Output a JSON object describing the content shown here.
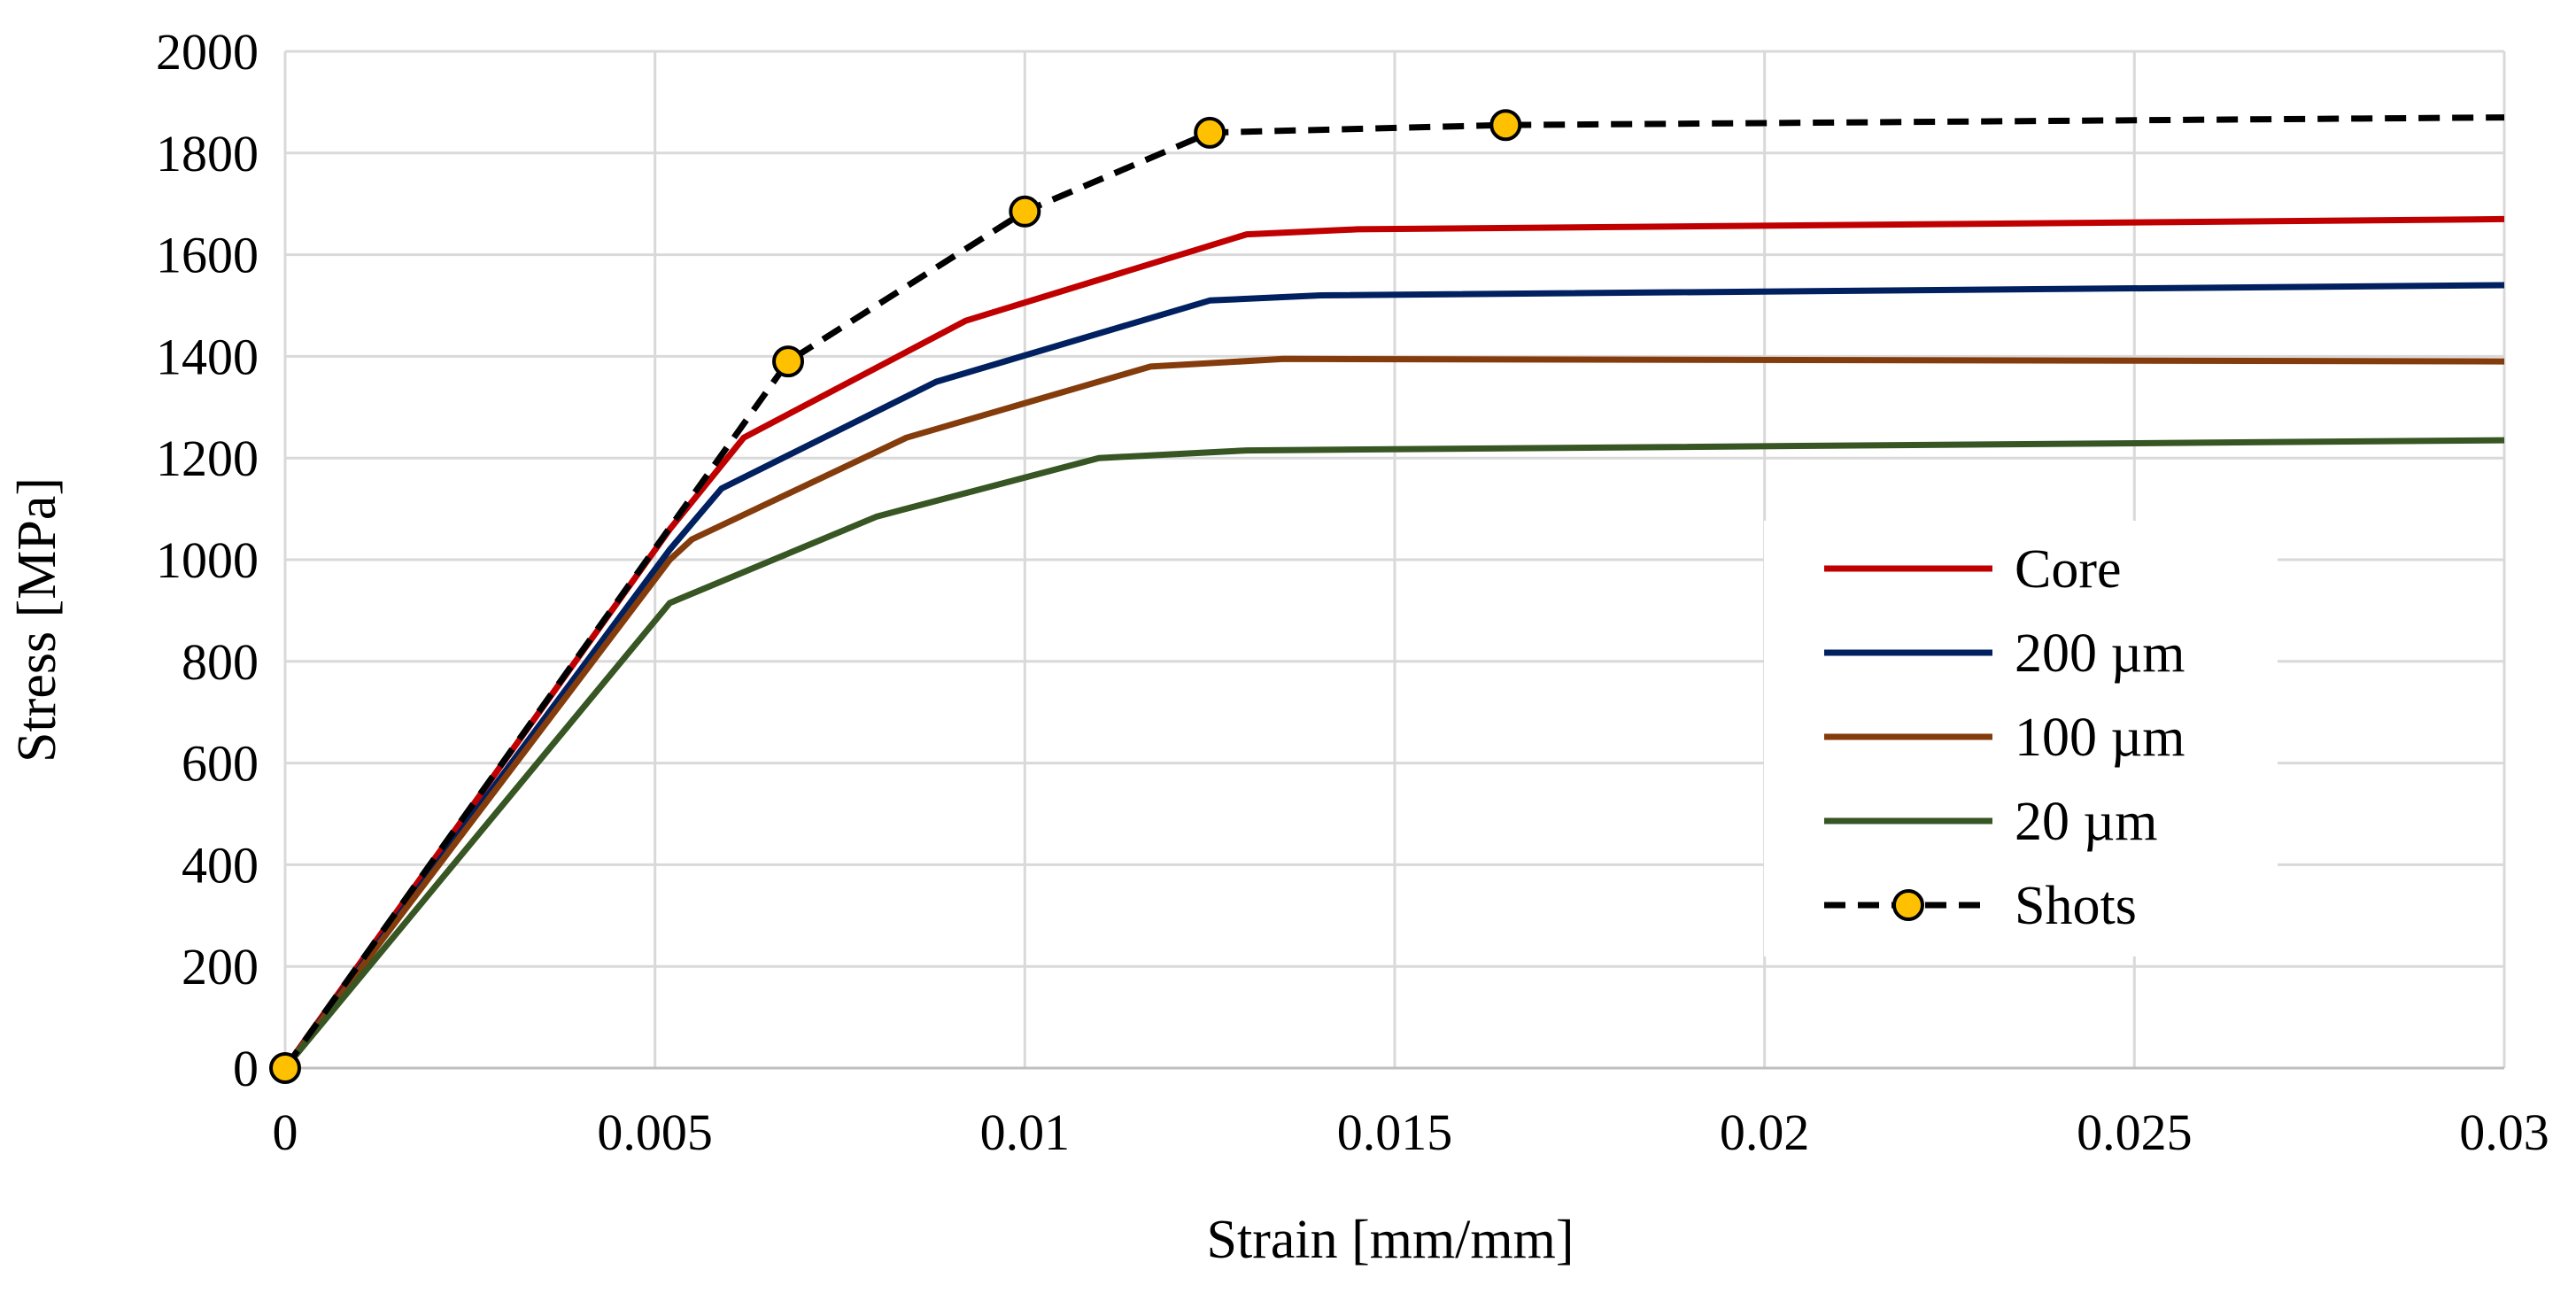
{
  "chart_data": {
    "type": "line",
    "title": "",
    "xlabel": "Strain [mm/mm]",
    "ylabel": "Stress [MPa]",
    "xlim": [
      0,
      0.03
    ],
    "ylim": [
      0,
      2000
    ],
    "xticks": [
      0,
      0.005,
      0.01,
      0.015,
      0.02,
      0.025,
      0.03
    ],
    "xtick_labels": [
      "0",
      "0.005",
      "0.01",
      "0.015",
      "0.02",
      "0.025",
      "0.03"
    ],
    "yticks": [
      0,
      200,
      400,
      600,
      800,
      1000,
      1200,
      1400,
      1600,
      1800,
      2000
    ],
    "ytick_labels": [
      "0",
      "200",
      "400",
      "600",
      "800",
      "1000",
      "1200",
      "1400",
      "1600",
      "1800",
      "2000"
    ],
    "grid": true,
    "legend_position": "right-center",
    "series": [
      {
        "name": "Core",
        "color": "#c00000",
        "style": "solid",
        "markers": false,
        "x": [
          0,
          0.0052,
          0.0062,
          0.0092,
          0.013,
          0.0145,
          0.03
        ],
        "y": [
          0,
          1060,
          1240,
          1470,
          1640,
          1650,
          1670
        ]
      },
      {
        "name": "200 µm",
        "color": "#002060",
        "style": "solid",
        "markers": false,
        "x": [
          0,
          0.0052,
          0.0059,
          0.0088,
          0.0125,
          0.014,
          0.03
        ],
        "y": [
          0,
          1020,
          1140,
          1350,
          1510,
          1520,
          1540
        ]
      },
      {
        "name": "100 µm",
        "color": "#843c0c",
        "style": "solid",
        "markers": false,
        "x": [
          0,
          0.0052,
          0.0055,
          0.0084,
          0.0117,
          0.0135,
          0.03
        ],
        "y": [
          0,
          1000,
          1040,
          1240,
          1380,
          1395,
          1390
        ]
      },
      {
        "name": "20 µm",
        "color": "#375623",
        "style": "solid",
        "markers": false,
        "x": [
          0,
          0.0052,
          0.008,
          0.011,
          0.013,
          0.03
        ],
        "y": [
          0,
          915,
          1085,
          1200,
          1215,
          1235
        ]
      },
      {
        "name": "Shots",
        "color": "#000000",
        "style": "dashed",
        "markers": true,
        "marker_color": "#ffc000",
        "x": [
          0,
          0.0068,
          0.01,
          0.0125,
          0.0165,
          0.03
        ],
        "y": [
          0,
          1390,
          1685,
          1840,
          1855,
          1870
        ],
        "marker_x": [
          0,
          0.0068,
          0.01,
          0.0125,
          0.0165
        ],
        "marker_y": [
          0,
          1390,
          1685,
          1840,
          1855
        ]
      }
    ]
  }
}
